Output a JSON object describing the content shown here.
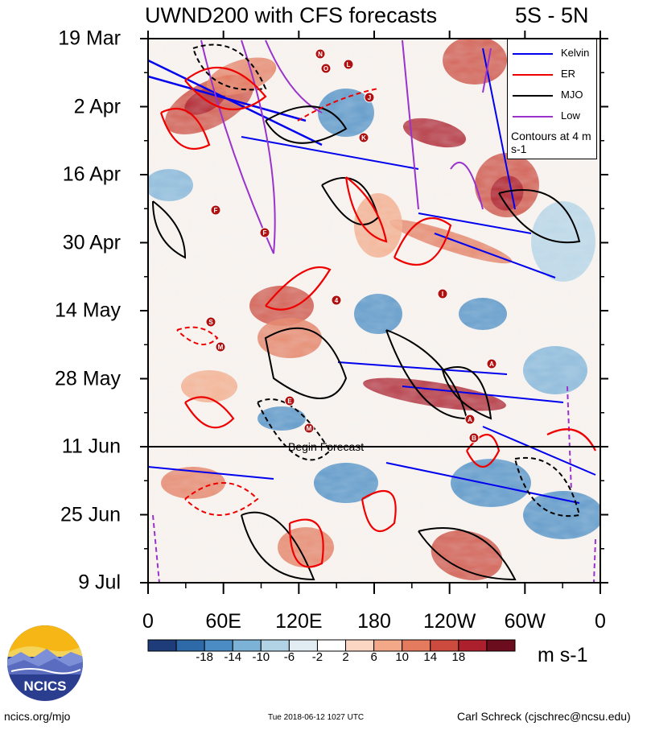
{
  "header": {
    "title": "UWND200 with CFS forecasts",
    "region": "5S - 5N"
  },
  "chart_data": {
    "type": "heatmap",
    "title": "UWND200 with CFS forecasts",
    "subtitle": "5S - 5N",
    "y_ticks": [
      "19 Mar",
      "2 Apr",
      "16 Apr",
      "30 Apr",
      "14 May",
      "28 May",
      "11 Jun",
      "25 Jun",
      "9 Jul"
    ],
    "x_ticks": [
      "0",
      "60E",
      "120E",
      "180",
      "120W",
      "60W",
      "0"
    ],
    "x_tick_values": [
      0,
      60,
      120,
      180,
      240,
      300,
      360
    ],
    "colorbar": {
      "units": "m s-1",
      "labels": [
        "-18",
        "-14",
        "-10",
        "-6",
        "-2",
        "2",
        "6",
        "10",
        "14",
        "18"
      ],
      "colors": [
        "#1f3c7a",
        "#2f6aa8",
        "#4a8cc3",
        "#7db2d7",
        "#b2d2e6",
        "#e1ecf3",
        "#ffffff",
        "#fbd7c3",
        "#f3a987",
        "#e47b5e",
        "#cc4b3e",
        "#ac1f2c",
        "#6b0d1c"
      ]
    },
    "forecast_line": {
      "label": "Begin Forecast",
      "date": "11 Jun"
    },
    "legend": {
      "items": [
        {
          "name": "Kelvin",
          "color": "#0000ee"
        },
        {
          "name": "ER",
          "color": "#ee0000"
        },
        {
          "name": "MJO",
          "color": "#000000"
        },
        {
          "name": "Low",
          "color": "#9933cc"
        }
      ],
      "note": "Contours at 4 m s-1"
    },
    "storm_markers": [
      "N",
      "O",
      "L",
      "J",
      "K",
      "F",
      "F",
      "4",
      "S",
      "M",
      "E",
      "M",
      "I",
      "A",
      "A",
      "B"
    ]
  },
  "footer": {
    "site": "ncics.org/mjo",
    "timestamp": "Tue 2018-06-12 1027 UTC",
    "author": "Carl Schreck (cjschrec@ncsu.edu)"
  },
  "logo": {
    "text": "NCICS"
  }
}
